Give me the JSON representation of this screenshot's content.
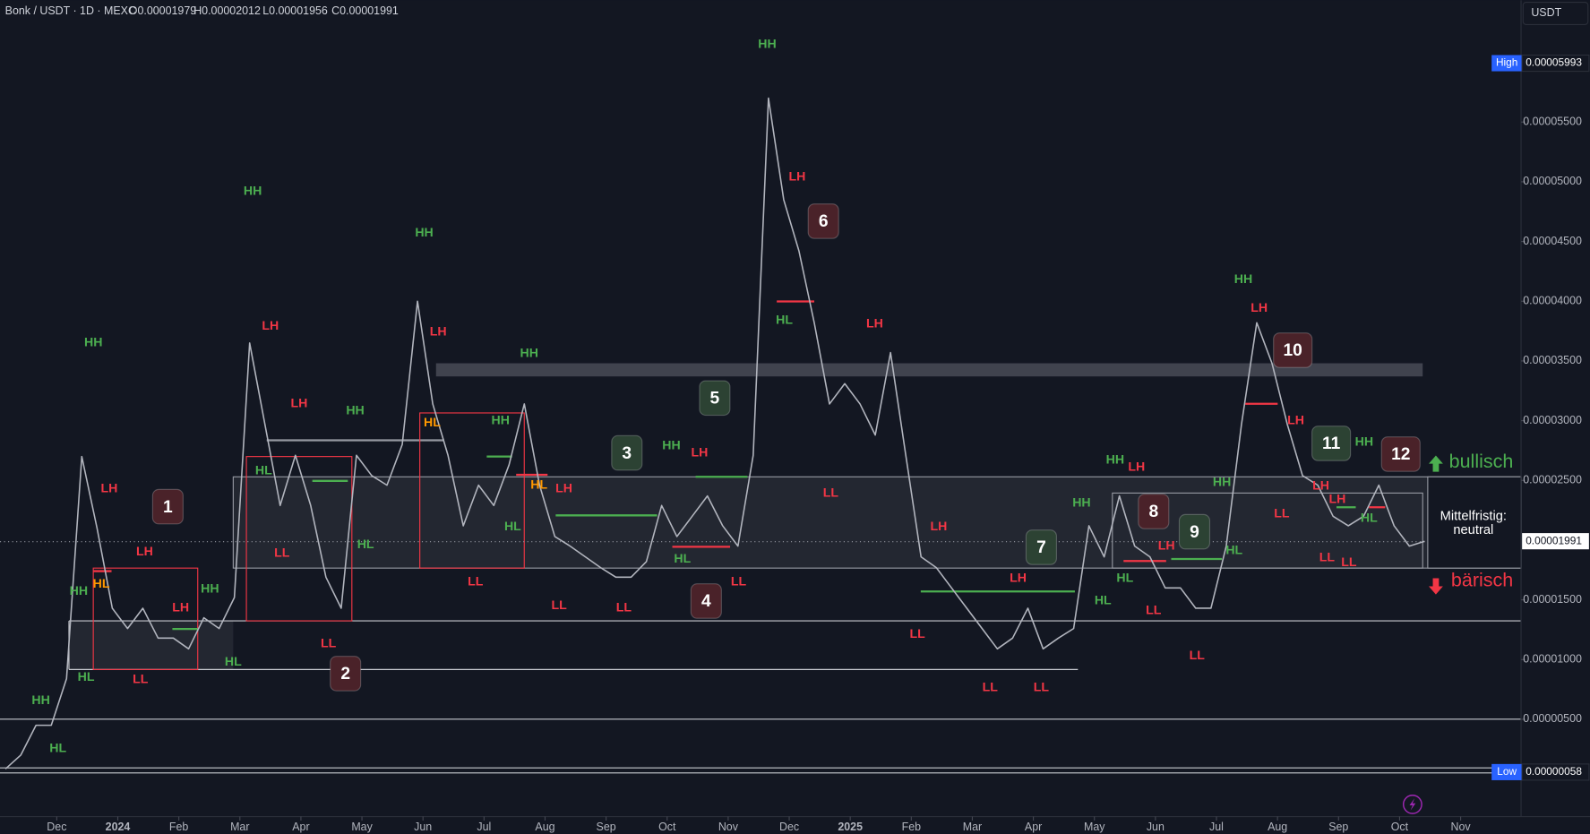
{
  "header": {
    "symbol": "Bonk / USDT · 1D · MEXC",
    "ohlc": [
      "O0.00001979",
      "H0.00002012",
      "L0.00001956",
      "C0.00001991"
    ]
  },
  "currency": "USDT",
  "zone_label": [
    "Mittelfristig:",
    "neutral"
  ],
  "bullish": "bullisch",
  "bearish": "bärisch",
  "chart_data": {
    "type": "line",
    "color": "#b2b5be",
    "x": [
      -0.84,
      -0.59,
      -0.34,
      -0.09,
      0.16,
      0.41,
      0.66,
      0.91,
      1.16,
      1.41,
      1.66,
      1.91,
      2.16,
      2.41,
      2.66,
      2.91,
      3.16,
      3.41,
      3.66,
      3.91,
      4.16,
      4.41,
      4.66,
      4.91,
      5.16,
      5.41,
      5.66,
      5.91,
      6.16,
      6.41,
      6.66,
      6.91,
      7.16,
      7.41,
      7.66,
      7.91,
      8.16,
      8.41,
      8.66,
      8.91,
      9.16,
      9.41,
      9.66,
      9.91,
      10.16,
      10.41,
      10.66,
      10.91,
      11.16,
      11.41,
      11.66,
      11.91,
      12.16,
      12.41,
      12.66,
      12.91,
      13.16,
      13.41,
      13.66,
      13.91,
      14.16,
      14.41,
      14.66,
      14.91,
      15.16,
      15.41,
      15.66,
      15.91,
      16.16,
      16.41,
      16.66,
      16.91,
      17.16,
      17.41,
      17.66,
      17.91,
      18.16,
      18.41,
      18.66,
      18.91,
      19.16,
      19.41,
      19.66,
      19.91,
      20.16,
      20.41,
      20.66,
      20.91,
      21.16,
      21.41,
      21.66,
      21.91,
      22.16,
      22.41
    ],
    "values": [
      8.5e-07,
      2e-06,
      4.5e-06,
      4.5e-06,
      8.4e-06,
      2.7e-05,
      2.1e-05,
      1.43e-05,
      1.26e-05,
      1.43e-05,
      1.18e-05,
      1.18e-05,
      1.09e-05,
      1.35e-05,
      1.26e-05,
      1.52e-05,
      3.65e-05,
      2.97e-05,
      2.29e-05,
      2.71e-05,
      2.29e-05,
      1.69e-05,
      1.43e-05,
      2.71e-05,
      2.54e-05,
      2.46e-05,
      2.8e-05,
      4e-05,
      3.14e-05,
      2.71e-05,
      2.12e-05,
      2.46e-05,
      2.29e-05,
      2.63e-05,
      3.14e-05,
      2.46e-05,
      2.03e-05,
      1.95e-05,
      1.86e-05,
      1.77e-05,
      1.69e-05,
      1.69e-05,
      1.82e-05,
      2.29e-05,
      2.03e-05,
      2.2e-05,
      2.37e-05,
      2.12e-05,
      1.95e-05,
      2.71e-05,
      5.7e-05,
      4.85e-05,
      4.42e-05,
      3.82e-05,
      3.14e-05,
      3.31e-05,
      3.14e-05,
      2.88e-05,
      3.57e-05,
      2.71e-05,
      1.86e-05,
      1.77e-05,
      1.6e-05,
      1.43e-05,
      1.26e-05,
      1.09e-05,
      1.18e-05,
      1.43e-05,
      1.09e-05,
      1.18e-05,
      1.26e-05,
      2.12e-05,
      1.86e-05,
      2.37e-05,
      1.95e-05,
      1.86e-05,
      1.6e-05,
      1.6e-05,
      1.43e-05,
      1.43e-05,
      1.95e-05,
      2.97e-05,
      3.82e-05,
      3.48e-05,
      2.97e-05,
      2.54e-05,
      2.46e-05,
      2.2e-05,
      2.12e-05,
      2.2e-05,
      2.46e-05,
      2.12e-05,
      1.95e-05,
      1.99e-05
    ],
    "xlim": [
      -0.93,
      23.99
    ],
    "ylim": [
      -3.14e-06,
      6.52e-05
    ],
    "xticks": [
      {
        "value": 0,
        "label": "Dec"
      },
      {
        "value": 1,
        "label": "2024"
      },
      {
        "value": 2,
        "label": "Feb"
      },
      {
        "value": 3,
        "label": "Mar"
      },
      {
        "value": 4,
        "label": "Apr"
      },
      {
        "value": 5,
        "label": "May"
      },
      {
        "value": 6,
        "label": "Jun"
      },
      {
        "value": 7,
        "label": "Jul"
      },
      {
        "value": 8,
        "label": "Aug"
      },
      {
        "value": 9,
        "label": "Sep"
      },
      {
        "value": 10,
        "label": "Oct"
      },
      {
        "value": 11,
        "label": "Nov"
      },
      {
        "value": 12,
        "label": "Dec"
      },
      {
        "value": 13,
        "label": "2025"
      },
      {
        "value": 14,
        "label": "Feb"
      },
      {
        "value": 15,
        "label": "Mar"
      },
      {
        "value": 16,
        "label": "Apr"
      },
      {
        "value": 17,
        "label": "May"
      },
      {
        "value": 18,
        "label": "Jun"
      },
      {
        "value": 19,
        "label": "Jul"
      },
      {
        "value": 20,
        "label": "Aug"
      },
      {
        "value": 21,
        "label": "Sep"
      },
      {
        "value": 22,
        "label": "Oct"
      },
      {
        "value": 23,
        "label": "Nov"
      }
    ],
    "yticks": [
      {
        "value": 5e-06,
        "label": "0.00000500"
      },
      {
        "value": 1e-05,
        "label": "0.00001000"
      },
      {
        "value": 1.5e-05,
        "label": "0.00001500"
      },
      {
        "value": 2.5e-05,
        "label": "0.00002500"
      },
      {
        "value": 3e-05,
        "label": "0.00003000"
      },
      {
        "value": 3.5e-05,
        "label": "0.00003500"
      },
      {
        "value": 4e-05,
        "label": "0.00004000"
      },
      {
        "value": 4.5e-05,
        "label": "0.00004500"
      },
      {
        "value": 5e-05,
        "label": "0.00005000"
      },
      {
        "value": 5.5e-05,
        "label": "0.00005500"
      }
    ],
    "grid": false,
    "price_labels": [
      {
        "name": "High",
        "value": 5.993e-05,
        "label": "0.00005993"
      },
      {
        "name": "Low",
        "value": 5.8e-07,
        "label": "0.00000058"
      },
      {
        "value": 1.991e-05,
        "label": "0.00001991"
      }
    ],
    "annotations": [
      {
        "text": "HH",
        "x": -0.26,
        "y": 6.54e-06,
        "color": "#4caf50"
      },
      {
        "text": "HL",
        "x": 0.02,
        "y": 2.55e-06,
        "color": "#4caf50"
      },
      {
        "text": "HH",
        "x": 0.36,
        "y": 1.57e-05,
        "color": "#4caf50"
      },
      {
        "text": "HL",
        "x": 0.73,
        "y": 1.63e-05,
        "color": "#ff9800"
      },
      {
        "text": "HL",
        "x": 0.48,
        "y": 8.49e-06,
        "color": "#4caf50"
      },
      {
        "text": "HH",
        "x": 0.6,
        "y": 3.65e-05,
        "color": "#4caf50"
      },
      {
        "text": "LH",
        "x": 0.86,
        "y": 2.43e-05,
        "color": "#f23645"
      },
      {
        "text": "LH",
        "x": 1.44,
        "y": 1.9e-05,
        "color": "#f23645"
      },
      {
        "text": "LL",
        "x": 1.37,
        "y": 8.32e-06,
        "color": "#f23645"
      },
      {
        "text": "LH",
        "x": 2.03,
        "y": 1.43e-05,
        "color": "#f23645"
      },
      {
        "text": "HH",
        "x": 2.51,
        "y": 1.59e-05,
        "color": "#4caf50"
      },
      {
        "text": "HL",
        "x": 2.89,
        "y": 9.76e-06,
        "color": "#4caf50"
      },
      {
        "text": "HH",
        "x": 3.21,
        "y": 4.92e-05,
        "color": "#4caf50"
      },
      {
        "text": "LH",
        "x": 3.5,
        "y": 3.79e-05,
        "color": "#f23645"
      },
      {
        "text": "HL",
        "x": 3.39,
        "y": 2.58e-05,
        "color": "#4caf50"
      },
      {
        "text": "LL",
        "x": 3.69,
        "y": 1.89e-05,
        "color": "#f23645"
      },
      {
        "text": "LH",
        "x": 3.97,
        "y": 3.14e-05,
        "color": "#f23645"
      },
      {
        "text": "LL",
        "x": 4.45,
        "y": 1.13e-05,
        "color": "#f23645"
      },
      {
        "text": "HH",
        "x": 4.89,
        "y": 3.08e-05,
        "color": "#4caf50"
      },
      {
        "text": "HL",
        "x": 5.06,
        "y": 1.96e-05,
        "color": "#4caf50"
      },
      {
        "text": "HH",
        "x": 6.02,
        "y": 4.57e-05,
        "color": "#4caf50"
      },
      {
        "text": "LH",
        "x": 6.25,
        "y": 3.74e-05,
        "color": "#f23645"
      },
      {
        "text": "HL",
        "x": 6.15,
        "y": 2.98e-05,
        "color": "#ff9800"
      },
      {
        "text": "LL",
        "x": 6.86,
        "y": 1.65e-05,
        "color": "#f23645"
      },
      {
        "text": "HH",
        "x": 7.27,
        "y": 3e-05,
        "color": "#4caf50"
      },
      {
        "text": "HL",
        "x": 7.47,
        "y": 2.11e-05,
        "color": "#4caf50"
      },
      {
        "text": "HH",
        "x": 7.74,
        "y": 3.56e-05,
        "color": "#4caf50"
      },
      {
        "text": "HL",
        "x": 7.9,
        "y": 2.46e-05,
        "color": "#ff9800"
      },
      {
        "text": "LH",
        "x": 8.31,
        "y": 2.43e-05,
        "color": "#f23645"
      },
      {
        "text": "LL",
        "x": 8.23,
        "y": 1.45e-05,
        "color": "#f23645"
      },
      {
        "text": "LL",
        "x": 9.29,
        "y": 1.43e-05,
        "color": "#f23645"
      },
      {
        "text": "HH",
        "x": 10.07,
        "y": 2.79e-05,
        "color": "#4caf50"
      },
      {
        "text": "LH",
        "x": 10.53,
        "y": 2.73e-05,
        "color": "#f23645"
      },
      {
        "text": "HL",
        "x": 10.25,
        "y": 1.84e-05,
        "color": "#4caf50"
      },
      {
        "text": "LL",
        "x": 11.17,
        "y": 1.65e-05,
        "color": "#f23645"
      },
      {
        "text": "HH",
        "x": 11.64,
        "y": 6.15e-05,
        "color": "#4caf50"
      },
      {
        "text": "LH",
        "x": 12.13,
        "y": 5.04e-05,
        "color": "#f23645"
      },
      {
        "text": "HL",
        "x": 11.92,
        "y": 3.84e-05,
        "color": "#4caf50"
      },
      {
        "text": "LL",
        "x": 12.68,
        "y": 2.39e-05,
        "color": "#f23645"
      },
      {
        "text": "LH",
        "x": 13.4,
        "y": 3.81e-05,
        "color": "#f23645"
      },
      {
        "text": "LH",
        "x": 14.45,
        "y": 2.11e-05,
        "color": "#f23645"
      },
      {
        "text": "LL",
        "x": 14.1,
        "y": 1.21e-05,
        "color": "#f23645"
      },
      {
        "text": "LL",
        "x": 15.29,
        "y": 7.64e-06,
        "color": "#f23645"
      },
      {
        "text": "LL",
        "x": 16.13,
        "y": 7.64e-06,
        "color": "#f23645"
      },
      {
        "text": "LH",
        "x": 15.75,
        "y": 1.68e-05,
        "color": "#f23645"
      },
      {
        "text": "HH",
        "x": 16.79,
        "y": 2.31e-05,
        "color": "#4caf50"
      },
      {
        "text": "HL",
        "x": 17.14,
        "y": 1.49e-05,
        "color": "#4caf50"
      },
      {
        "text": "HH",
        "x": 17.34,
        "y": 2.67e-05,
        "color": "#4caf50"
      },
      {
        "text": "LH",
        "x": 17.69,
        "y": 2.61e-05,
        "color": "#f23645"
      },
      {
        "text": "HL",
        "x": 17.5,
        "y": 1.68e-05,
        "color": "#4caf50"
      },
      {
        "text": "LL",
        "x": 17.97,
        "y": 1.41e-05,
        "color": "#f23645"
      },
      {
        "text": "LH",
        "x": 18.18,
        "y": 1.95e-05,
        "color": "#f23645"
      },
      {
        "text": "HL",
        "x": 19.29,
        "y": 1.91e-05,
        "color": "#4caf50"
      },
      {
        "text": "LL",
        "x": 18.68,
        "y": 1.03e-05,
        "color": "#f23645"
      },
      {
        "text": "HH",
        "x": 19.09,
        "y": 2.48e-05,
        "color": "#4caf50"
      },
      {
        "text": "HH",
        "x": 19.44,
        "y": 4.18e-05,
        "color": "#4caf50"
      },
      {
        "text": "LH",
        "x": 19.7,
        "y": 3.94e-05,
        "color": "#f23645"
      },
      {
        "text": "LH",
        "x": 20.3,
        "y": 3e-05,
        "color": "#f23645"
      },
      {
        "text": "LL",
        "x": 20.07,
        "y": 2.22e-05,
        "color": "#f23645"
      },
      {
        "text": "LH",
        "x": 20.71,
        "y": 2.45e-05,
        "color": "#f23645"
      },
      {
        "text": "LH",
        "x": 20.98,
        "y": 2.34e-05,
        "color": "#f23645"
      },
      {
        "text": "HH",
        "x": 21.42,
        "y": 2.82e-05,
        "color": "#4caf50"
      },
      {
        "text": "HL",
        "x": 21.5,
        "y": 2.18e-05,
        "color": "#4caf50"
      },
      {
        "text": "LL",
        "x": 20.81,
        "y": 1.85e-05,
        "color": "#f23645"
      },
      {
        "text": "LL",
        "x": 21.17,
        "y": 1.81e-05,
        "color": "#f23645"
      }
    ],
    "callouts": [
      {
        "text": "1",
        "x": 1.82,
        "y": 2.28e-05,
        "color": "#4a2229"
      },
      {
        "text": "2",
        "x": 4.73,
        "y": 8.83e-06,
        "color": "#4a2229"
      },
      {
        "text": "3",
        "x": 9.34,
        "y": 2.73e-05,
        "color": "#2c4233"
      },
      {
        "text": "4",
        "x": 10.64,
        "y": 1.49e-05,
        "color": "#4a2229"
      },
      {
        "text": "5",
        "x": 10.78,
        "y": 3.19e-05,
        "color": "#2c4233"
      },
      {
        "text": "6",
        "x": 12.56,
        "y": 4.67e-05,
        "color": "#4a2229"
      },
      {
        "text": "7",
        "x": 16.13,
        "y": 1.94e-05,
        "color": "#2c4233"
      },
      {
        "text": "8",
        "x": 17.97,
        "y": 2.24e-05,
        "color": "#4a2229"
      },
      {
        "text": "9",
        "x": 18.64,
        "y": 2.07e-05,
        "color": "#2c4233"
      },
      {
        "text": "10",
        "x": 20.25,
        "y": 3.59e-05,
        "color": "#4a2229"
      },
      {
        "text": "11",
        "x": 20.88,
        "y": 2.81e-05,
        "color": "#2c4233"
      },
      {
        "text": "12",
        "x": 22.02,
        "y": 2.72e-05,
        "color": "#4a2229"
      }
    ]
  }
}
